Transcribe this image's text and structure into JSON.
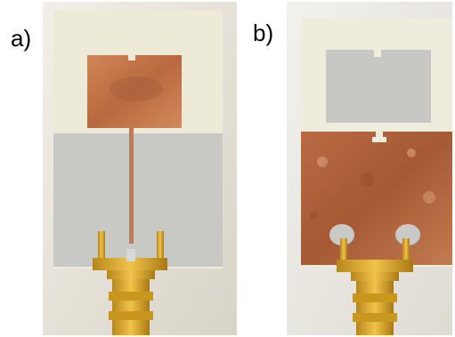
{
  "figure": {
    "panels": [
      {
        "label": "a)",
        "view": "front"
      },
      {
        "label": "b)",
        "view": "back"
      }
    ]
  },
  "colors": {
    "substrate": "#ede9d6",
    "ground_grey": "#c9c9c7",
    "copper": "#c97a52",
    "copper_dark": "#a85a36",
    "gold": "#d9a72c",
    "background": "#e9e5dc"
  },
  "icons": {
    "connector": "sma-connector"
  }
}
